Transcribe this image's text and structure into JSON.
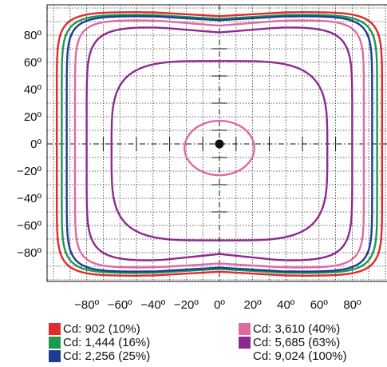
{
  "chart_data": {
    "type": "polar-isocandela",
    "title": "",
    "xlabel": "",
    "ylabel": "",
    "xlim": [
      -104,
      104
    ],
    "ylim": [
      -104,
      104
    ],
    "x_ticks": [
      -80,
      -60,
      -40,
      -20,
      0,
      20,
      40,
      60,
      80
    ],
    "y_ticks": [
      80,
      60,
      40,
      20,
      0,
      -20,
      -40,
      -60,
      -80
    ],
    "x_tick_labels": [
      "−80º",
      "−60º",
      "−40º",
      "−20º",
      "0º",
      "20º",
      "40º",
      "60º",
      "80º"
    ],
    "y_tick_labels": [
      "80º",
      "60º",
      "40º",
      "20º",
      "0º",
      "−20º",
      "−40º",
      "−60º",
      "−80º"
    ],
    "grid": true,
    "legend_position": "bottom",
    "center_point": {
      "x": 0,
      "y": 0
    },
    "series": [
      {
        "name": "Cd: 902 (10%)",
        "color": "#e02b2b",
        "contour": {
          "center": [
            0,
            0
          ],
          "half_width": 98,
          "half_height": 97,
          "squareness": 9,
          "top_dip": 3,
          "bottom_dip": 3
        }
      },
      {
        "name": "Cd: 1,444 (16%)",
        "color": "#1b9a4e",
        "contour": {
          "center": [
            0,
            0
          ],
          "half_width": 95,
          "half_height": 95,
          "squareness": 9,
          "top_dip": 3,
          "bottom_dip": 3
        }
      },
      {
        "name": "Cd: 2,256 (25%)",
        "color": "#1f3b94",
        "contour": {
          "center": [
            0,
            0
          ],
          "half_width": 92,
          "half_height": 94,
          "squareness": 9,
          "top_dip": 3,
          "bottom_dip": 3
        }
      },
      {
        "name": "Cd: 3,610 (40%)",
        "color": "#dd6aa0",
        "contour": {
          "center": [
            0,
            0
          ],
          "half_width": 87,
          "half_height": 91,
          "squareness": 9,
          "top_dip": 4,
          "bottom_dip": 3
        }
      },
      {
        "name": "Cd: 5,685 (63%)",
        "color": "#8e2a8e",
        "contour": {
          "center": [
            0,
            0
          ],
          "half_width": 80,
          "half_height": 86,
          "squareness": 7,
          "top_dip": 4,
          "bottom_dip": 5
        }
      },
      {
        "name": "Cd: 5,685 (63%)",
        "color": "#8e2a8e",
        "contour": {
          "center": [
            0,
            -5
          ],
          "half_width": 65,
          "half_height": 66,
          "squareness": 4,
          "top_dip": 0,
          "bottom_dip": 0
        }
      },
      {
        "name": "Cd: 3,610 (40%)",
        "color": "#dd6aa0",
        "contour": {
          "center": [
            0,
            -3
          ],
          "half_width": 21,
          "half_height": 20,
          "squareness": 2,
          "top_dip": 0,
          "bottom_dip": 0
        }
      }
    ],
    "legend": [
      {
        "label": "Cd: 902 (10%)",
        "color": "#e02b2b"
      },
      {
        "label": "Cd: 1,444 (16%)",
        "color": "#1b9a4e"
      },
      {
        "label": "Cd: 2,256 (25%)",
        "color": "#1f3b94"
      },
      {
        "label": "Cd: 3,610 (40%)",
        "color": "#dd6aa0"
      },
      {
        "label": "Cd: 5,685 (63%)",
        "color": "#8e2a8e"
      },
      {
        "label": "Cd: 9,024 (100%)",
        "color": ""
      }
    ]
  }
}
